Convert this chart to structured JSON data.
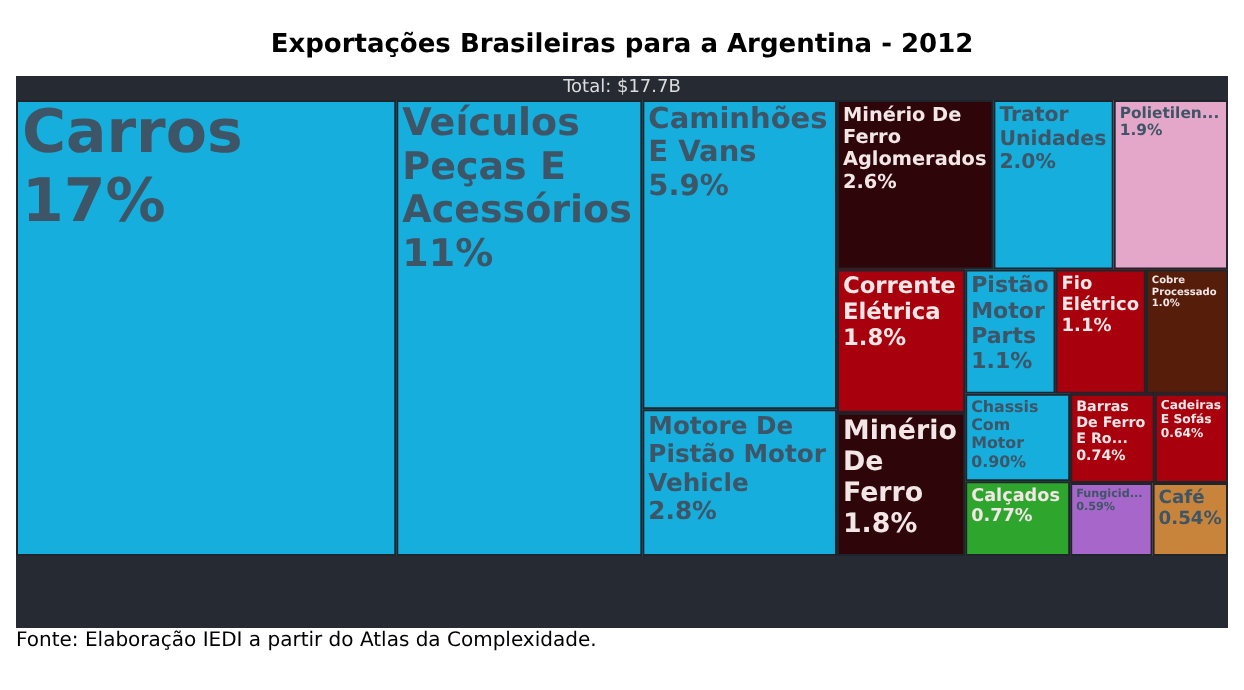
{
  "chart_data": {
    "type": "other",
    "title": "Exportações Brasileiras para a Argentina - 2012",
    "categories": [
      "Carros",
      "Veículos Peças E Acessórios",
      "Caminhões E Vans",
      "Motore De Pistão Motor Vehicle",
      "Minério De Ferro Aglomerados",
      "Trator Unidades",
      "Polietilen...",
      "Corrente Elétrica",
      "Minério De Ferro",
      "Pistão Motor Parts",
      "Fio Elétrico",
      "Cobre Processado",
      "Chassis Com Motor",
      "Calçados",
      "Barras De Ferro E Ro...",
      "Cadeiras E Sofás",
      "Fungicid...",
      "Café"
    ],
    "values": [
      17,
      11,
      5.9,
      2.8,
      2.6,
      2.0,
      1.9,
      1.8,
      1.8,
      1.1,
      1.1,
      1.0,
      0.9,
      0.77,
      0.74,
      0.64,
      0.59,
      0.54
    ],
    "value_labels": [
      "17%",
      "11%",
      "5.9%",
      "2.8%",
      "2.6%",
      "2.0%",
      "1.9%",
      "1.8%",
      "1.8%",
      "1.1%",
      "1.1%",
      "1.0%",
      "0.90%",
      "0.77%",
      "0.74%",
      "0.64%",
      "0.59%",
      "0.54%"
    ],
    "colors": [
      "#16aedd",
      "#16aedd",
      "#16aedd",
      "#16aedd",
      "#2e0508",
      "#16aedd",
      "#e4a7c9",
      "#a8000c",
      "#2e0508",
      "#16aedd",
      "#a8000c",
      "#571d0b",
      "#16aedd",
      "#2ea62e",
      "#a8000c",
      "#a8000c",
      "#a766c9",
      "#c8843a"
    ],
    "annotations": [
      "Total: $17.7B",
      "Fonte: Elaboração IEDI a partir do Atlas da Complexidade."
    ]
  }
}
